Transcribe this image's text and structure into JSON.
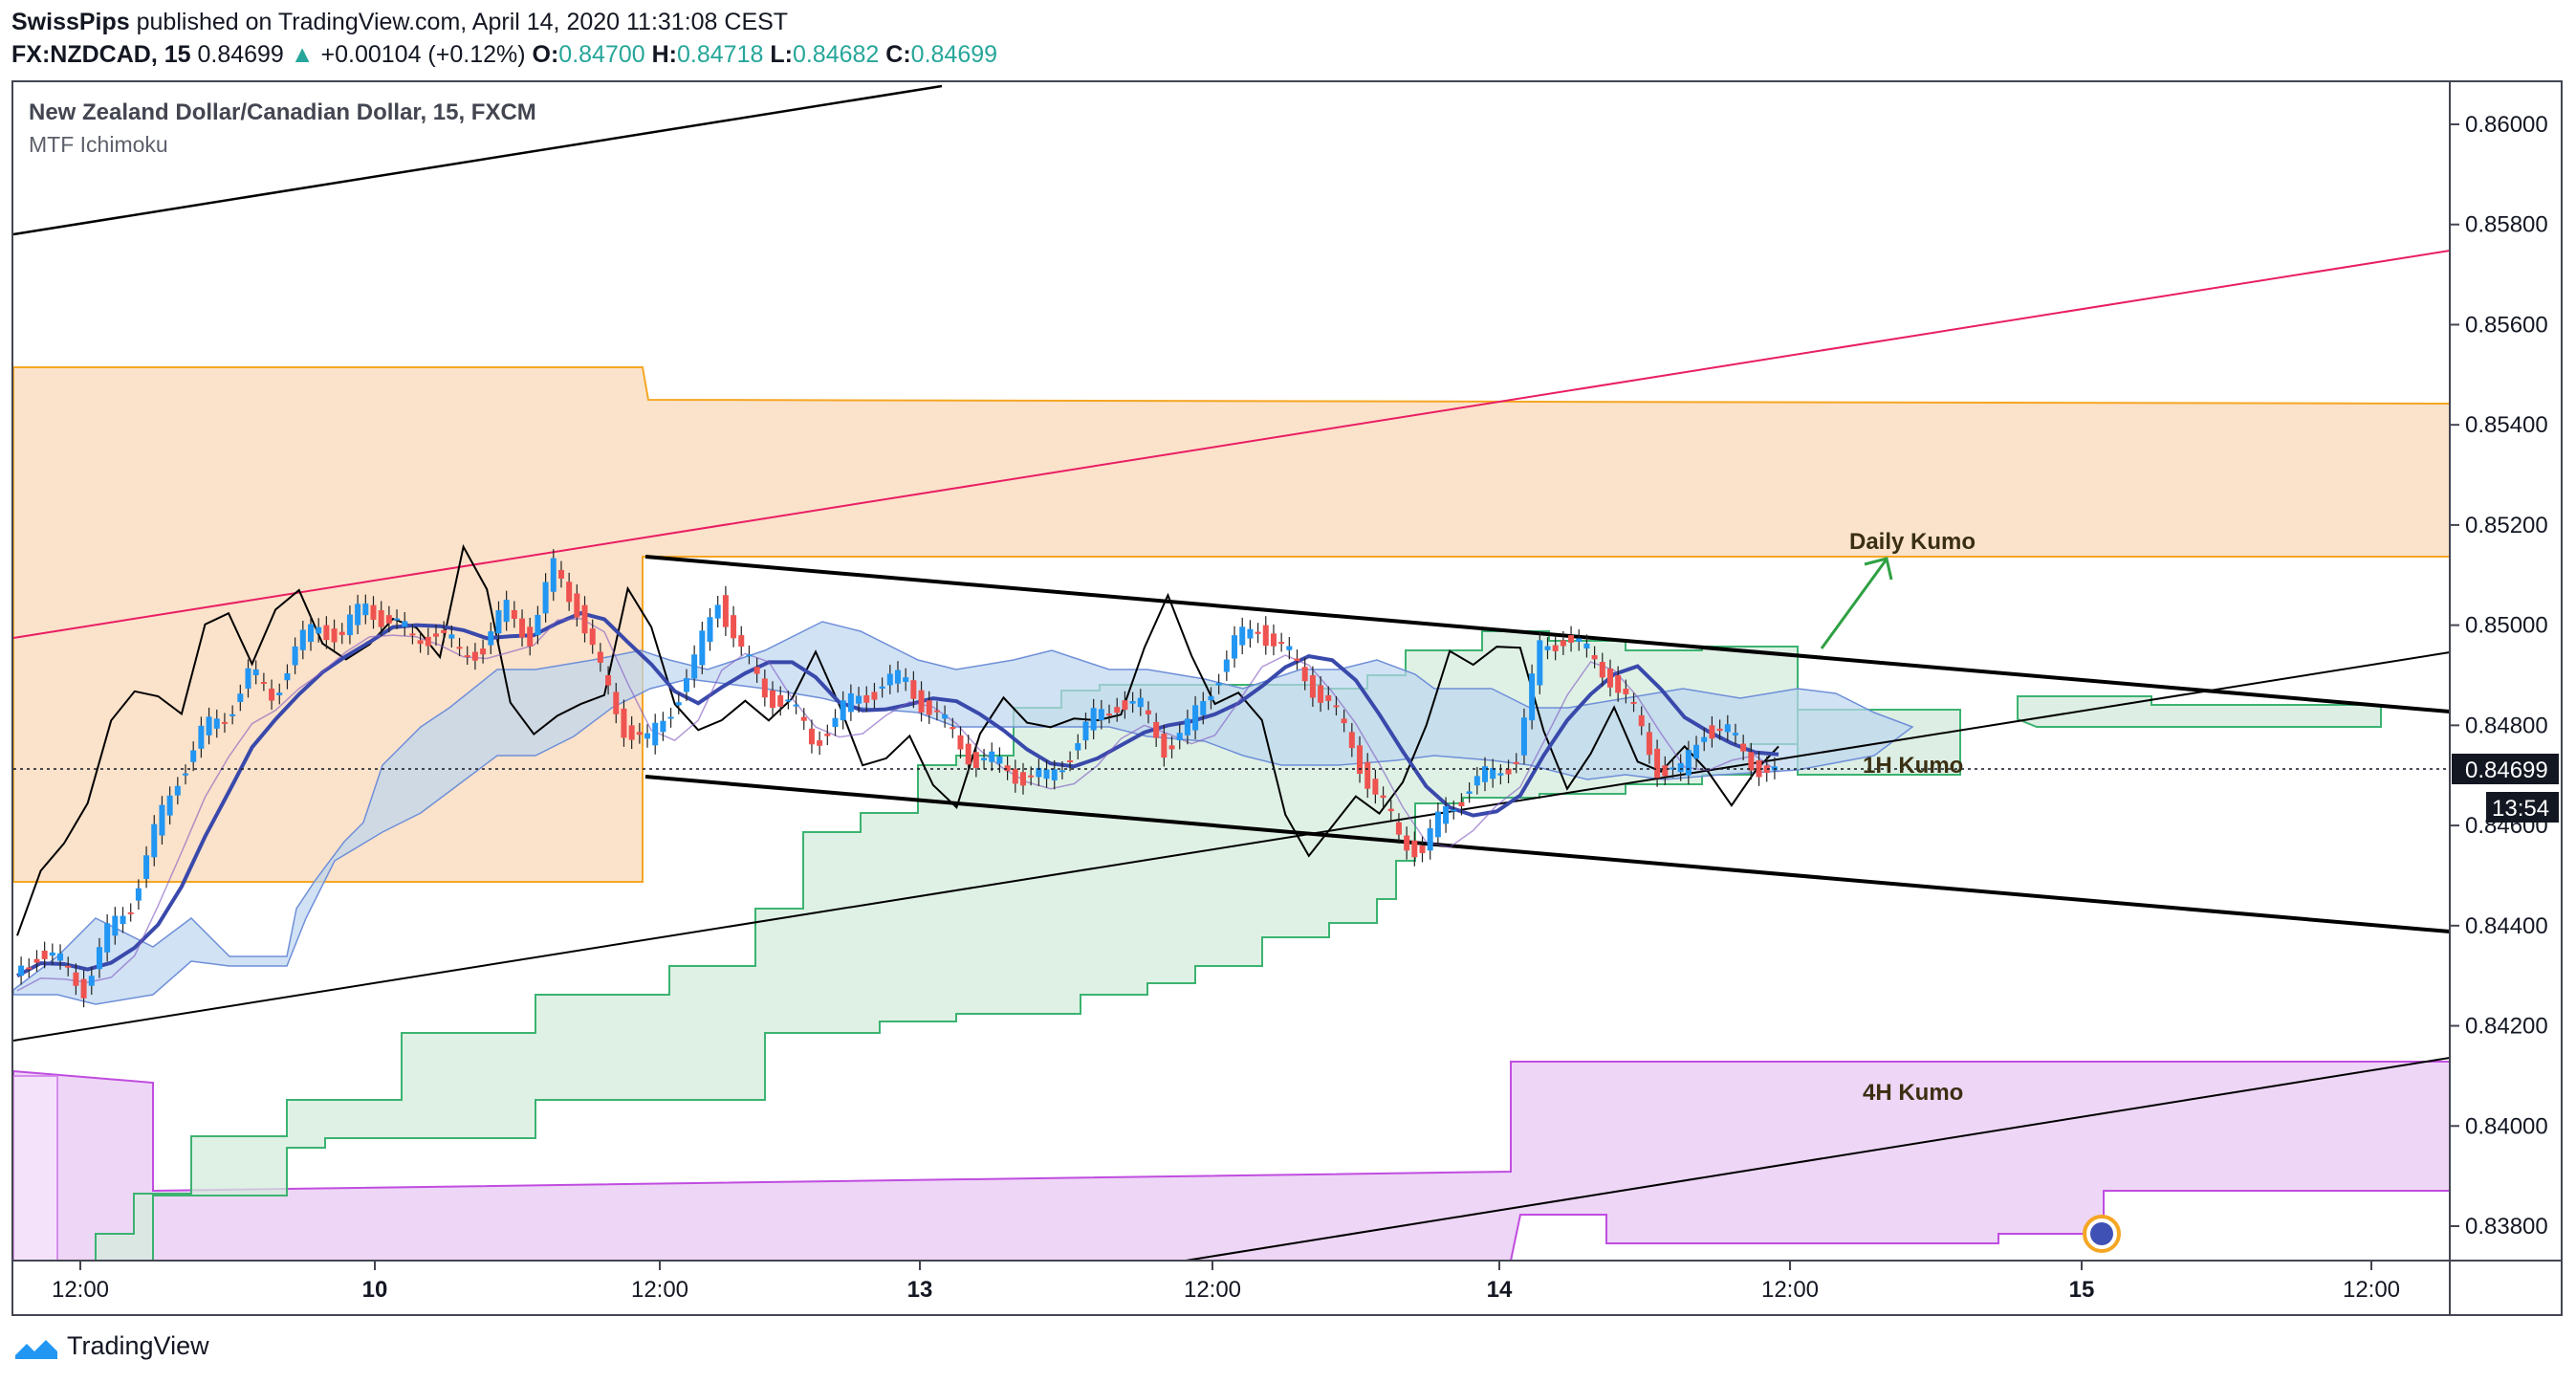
{
  "header": {
    "publisher": "SwissPips",
    "published_text": "published on TradingView.com, April 14, 2020 11:31:08 CEST"
  },
  "quote": {
    "symbol": "FX:NZDCAD, 15",
    "last": "0.84699",
    "arrow": "▲",
    "change": "+0.00104 (+0.12%)",
    "o_label": "O:",
    "o_value": "0.84700",
    "h_label": "H:",
    "h_value": "0.84718",
    "l_label": "L:",
    "l_value": "0.84682",
    "c_label": "C:",
    "c_value": "0.84699"
  },
  "legend": {
    "title": "New Zealand Dollar/Canadian Dollar, 15, FXCM",
    "indicator": "MTF Ichimoku"
  },
  "footer": {
    "brand": "TradingView"
  },
  "colors": {
    "up": "#26a69a",
    "bull_candle": "#2196f3",
    "bear_candle": "#ef5350",
    "daily_kumo": "#f7c79a",
    "hourly_kumo": "#c8e6d2",
    "four_h_kumo": "#e3c4f0",
    "trend_red": "#e91e63",
    "trend_black": "#000000"
  },
  "chart_data": {
    "type": "candlestick",
    "symbol": "FX:NZDCAD",
    "interval": "15",
    "ylim": [
      0.837,
      0.8608
    ],
    "y_ticks": [
      "0.86000",
      "0.85800",
      "0.85600",
      "0.85400",
      "0.85200",
      "0.85000",
      "0.84800",
      "0.84600",
      "0.84400",
      "0.84200",
      "0.84000",
      "0.83800"
    ],
    "x_ticks": [
      "12:00",
      "10",
      "12:00",
      "13",
      "12:00",
      "14",
      "12:00",
      "15",
      "12:00"
    ],
    "last_price_label": "0.84699",
    "countdown_label": "13:54",
    "annotations": [
      "Daily Kumo",
      "1H Kumo",
      "4H Kumo"
    ],
    "price_path": [
      0.843,
      0.8435,
      0.8432,
      0.8428,
      0.8438,
      0.8445,
      0.8458,
      0.847,
      0.8478,
      0.8482,
      0.849,
      0.8486,
      0.8495,
      0.85,
      0.8498,
      0.8504,
      0.8501,
      0.8497,
      0.8499,
      0.8494,
      0.8496,
      0.8503,
      0.8498,
      0.8511,
      0.8504,
      0.849,
      0.848,
      0.8476,
      0.8484,
      0.8492,
      0.8506,
      0.8494,
      0.8487,
      0.8484,
      0.8477,
      0.8481,
      0.8486,
      0.8488,
      0.8489,
      0.8483,
      0.8478,
      0.8473,
      0.8472,
      0.847,
      0.8469,
      0.8475,
      0.8481,
      0.8485,
      0.8483,
      0.8476,
      0.8479,
      0.8488,
      0.8496,
      0.85,
      0.8495,
      0.849,
      0.8484,
      0.8476,
      0.8466,
      0.8458,
      0.8455,
      0.8463,
      0.8468,
      0.847,
      0.8474,
      0.8495,
      0.8498,
      0.8494,
      0.849,
      0.8482,
      0.8472,
      0.847,
      0.848,
      0.8478,
      0.8473,
      0.847
    ],
    "series": [
      {
        "name": "Daily Kumo",
        "upper": [
          0.8517,
          0.8517,
          0.8517,
          0.8517,
          0.8517,
          0.8517,
          0.8517,
          0.8517,
          0.8517,
          0.8517,
          0.8517,
          0.8517,
          0.8517,
          0.8517,
          0.8517,
          0.8517,
          0.8517,
          0.8517,
          0.8517,
          0.8517
        ],
        "lower": [
          0.8471,
          0.8471,
          0.8471,
          0.8471,
          0.8471,
          0.8471,
          0.8471,
          0.8471,
          0.8471,
          0.8471,
          0.8471,
          0.8471,
          0.8471,
          0.8471,
          0.8471,
          0.8471,
          0.8471,
          0.8471,
          0.8471,
          0.8471
        ]
      },
      {
        "name": "4H Kumo",
        "upper": [
          0.84,
          0.841,
          0.841
        ],
        "lower": [
          0.8378,
          0.8385,
          0.8385
        ]
      }
    ]
  }
}
